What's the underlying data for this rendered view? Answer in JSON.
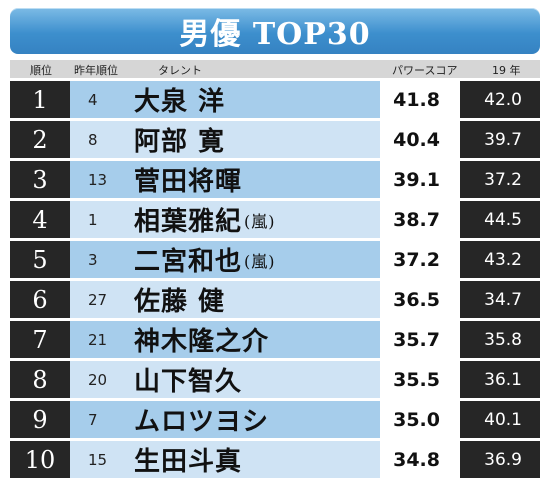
{
  "title": "男優 TOP30",
  "headers": {
    "rank": "順位",
    "prev_rank": "昨年順位",
    "talent": "タレント",
    "power_score": "パワースコア",
    "last_year": "19 年"
  },
  "rows": [
    {
      "rank": "1",
      "prev": "4",
      "name": "大泉 洋",
      "group": "",
      "score": "41.8",
      "last": "42.0"
    },
    {
      "rank": "2",
      "prev": "8",
      "name": "阿部 寛",
      "group": "",
      "score": "40.4",
      "last": "39.7"
    },
    {
      "rank": "3",
      "prev": "13",
      "name": "菅田将暉",
      "group": "",
      "score": "39.1",
      "last": "37.2"
    },
    {
      "rank": "4",
      "prev": "1",
      "name": "相葉雅紀",
      "group": "(嵐)",
      "score": "38.7",
      "last": "44.5"
    },
    {
      "rank": "5",
      "prev": "3",
      "name": "二宮和也",
      "group": "(嵐)",
      "score": "37.2",
      "last": "43.2"
    },
    {
      "rank": "6",
      "prev": "27",
      "name": "佐藤 健",
      "group": "",
      "score": "36.5",
      "last": "34.7"
    },
    {
      "rank": "7",
      "prev": "21",
      "name": "神木隆之介",
      "group": "",
      "score": "35.7",
      "last": "35.8"
    },
    {
      "rank": "8",
      "prev": "20",
      "name": "山下智久",
      "group": "",
      "score": "35.5",
      "last": "36.1"
    },
    {
      "rank": "9",
      "prev": "7",
      "name": "ムロツヨシ",
      "group": "",
      "score": "35.0",
      "last": "40.1"
    },
    {
      "rank": "10",
      "prev": "15",
      "name": "生田斗真",
      "group": "",
      "score": "34.8",
      "last": "36.9"
    }
  ]
}
